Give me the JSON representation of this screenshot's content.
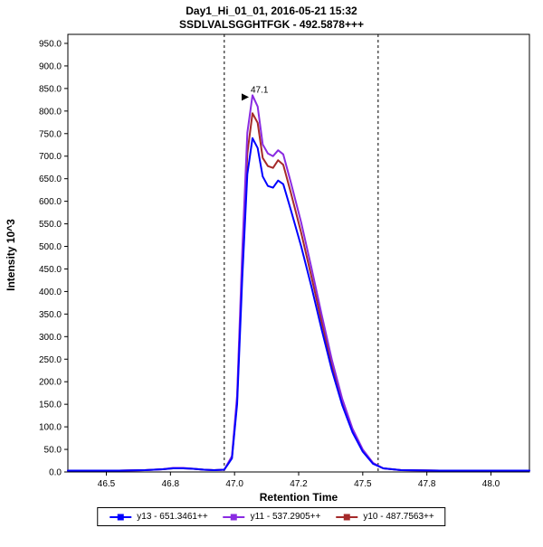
{
  "chart_data": {
    "type": "line",
    "title": "Day1_Hi_01_01, 2016-05-21 15:32",
    "subtitle": "SSDLVALSGGHTFGK - 492.5878+++",
    "xlabel": "Retention Time",
    "ylabel": "Intensity 10^3",
    "xlim": [
      46.35,
      48.15
    ],
    "ylim": [
      0,
      970
    ],
    "xticks": [
      46.5,
      46.75,
      47.0,
      47.25,
      47.5,
      47.75,
      48.0
    ],
    "xtick_labels": [
      "46.5",
      "46.8",
      "47.0",
      "47.2",
      "47.5",
      "47.8",
      "48.0"
    ],
    "yticks": [
      0,
      50,
      100,
      150,
      200,
      250,
      300,
      350,
      400,
      450,
      500,
      550,
      600,
      650,
      700,
      750,
      800,
      850,
      900,
      950
    ],
    "peak_boundaries": [
      46.96,
      47.56
    ],
    "annotation": {
      "text": "47.1",
      "x": 47.07,
      "y": 845,
      "color": "#333333"
    },
    "grid": false,
    "legend_position": "bottom",
    "x": [
      46.35,
      46.45,
      46.55,
      46.65,
      46.72,
      46.76,
      46.8,
      46.84,
      46.88,
      46.92,
      46.96,
      46.99,
      47.01,
      47.03,
      47.05,
      47.07,
      47.09,
      47.11,
      47.13,
      47.15,
      47.17,
      47.19,
      47.22,
      47.26,
      47.3,
      47.34,
      47.38,
      47.42,
      47.46,
      47.5,
      47.54,
      47.58,
      47.65,
      47.8,
      48.0,
      48.15
    ],
    "series": [
      {
        "name": "y13 - 651.3461++",
        "color": "#0000FF",
        "values": [
          3,
          3,
          3,
          4,
          6,
          8,
          8,
          7,
          5,
          4,
          5,
          30,
          150,
          430,
          660,
          740,
          718,
          655,
          634,
          630,
          646,
          638,
          580,
          500,
          410,
          315,
          225,
          148,
          88,
          45,
          18,
          8,
          4,
          3,
          3,
          3
        ]
      },
      {
        "name": "y11 - 537.2905++",
        "color": "#8A2BE2",
        "values": [
          3,
          3,
          3,
          4,
          6,
          9,
          9,
          7,
          5,
          4,
          5,
          35,
          170,
          490,
          752,
          835,
          810,
          726,
          706,
          700,
          713,
          704,
          641,
          553,
          452,
          348,
          248,
          162,
          96,
          50,
          20,
          8,
          4,
          3,
          3,
          3
        ]
      },
      {
        "name": "y10 - 487.7563++",
        "color": "#A52A2A",
        "values": [
          3,
          3,
          3,
          4,
          6,
          8,
          8,
          7,
          5,
          4,
          5,
          32,
          160,
          460,
          706,
          795,
          774,
          696,
          678,
          674,
          691,
          681,
          618,
          530,
          432,
          332,
          237,
          155,
          92,
          47,
          19,
          8,
          4,
          3,
          3,
          3
        ]
      }
    ]
  }
}
